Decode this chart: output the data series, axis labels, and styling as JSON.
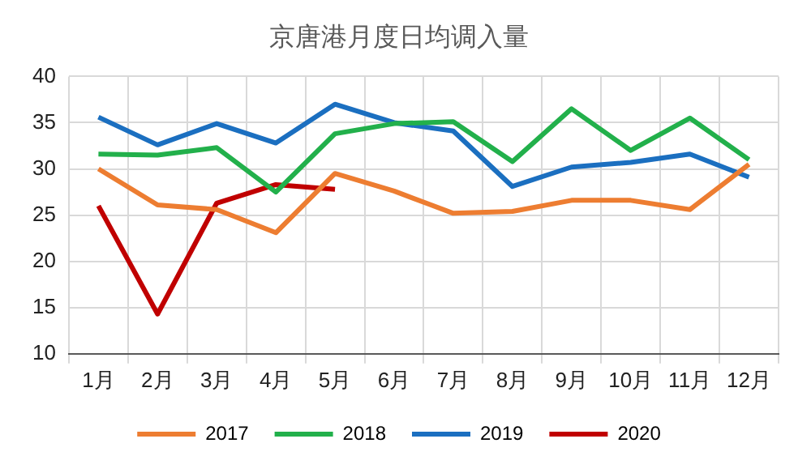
{
  "chart_data": {
    "type": "line",
    "title": "京唐港月度日均调入量",
    "categories": [
      "1月",
      "2月",
      "3月",
      "4月",
      "5月",
      "6月",
      "7月",
      "8月",
      "9月",
      "10月",
      "11月",
      "12月"
    ],
    "series": [
      {
        "name": "2017",
        "color": "#ed7d31",
        "values": [
          30.0,
          26.1,
          25.6,
          23.1,
          29.5,
          27.6,
          25.2,
          25.4,
          26.6,
          26.6,
          25.6,
          30.5
        ]
      },
      {
        "name": "2018",
        "color": "#22b04b",
        "values": [
          31.6,
          31.5,
          32.3,
          27.5,
          33.8,
          34.9,
          35.1,
          30.8,
          36.5,
          32.0,
          35.5,
          31.0
        ]
      },
      {
        "name": "2019",
        "color": "#1b6fc0",
        "values": [
          35.6,
          32.6,
          34.9,
          32.8,
          37.0,
          35.0,
          34.1,
          28.1,
          30.2,
          30.7,
          31.6,
          29.1
        ]
      },
      {
        "name": "2020",
        "color": "#c00000",
        "values": [
          26.0,
          14.3,
          26.3,
          28.3,
          27.8,
          null,
          null,
          null,
          null,
          null,
          null,
          null
        ]
      }
    ],
    "ylim": [
      10,
      40
    ],
    "yticks": [
      10,
      15,
      20,
      25,
      30,
      35,
      40
    ],
    "grid": true,
    "legend": "bottom",
    "marker": "none",
    "line_style": "solid"
  }
}
